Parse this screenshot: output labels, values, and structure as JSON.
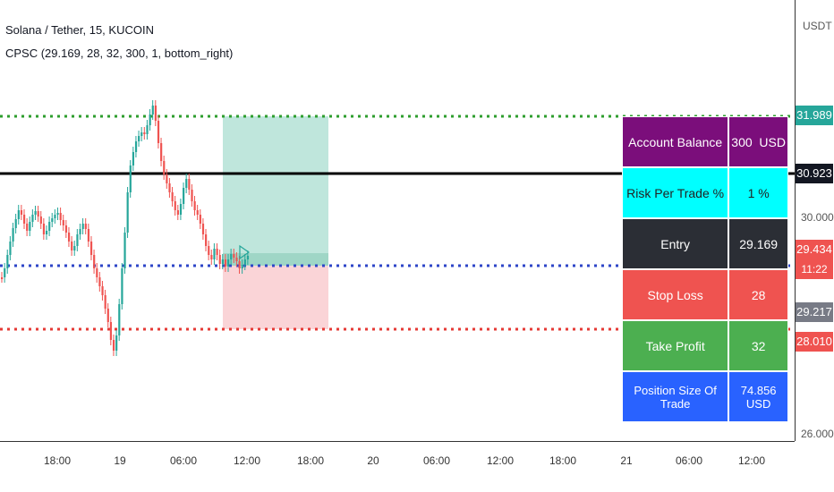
{
  "header": {
    "symbol_line": "Solana / Tether, 15, KUCOIN",
    "indicator_line": "CPSC (29.169, 28, 32, 300, 1, bottom_right)"
  },
  "price_axis": {
    "currency": "USDT",
    "ticks": [
      "30.000",
      "26.000"
    ],
    "tags": [
      {
        "text": "31.989",
        "color": "#26a69a"
      },
      {
        "text": "30.923",
        "color": "#131722"
      },
      {
        "text": "29.434",
        "color": "#ef5350"
      },
      {
        "text": "11:22",
        "color": "#ef5350"
      },
      {
        "text": "29.217",
        "color": "#787b86"
      },
      {
        "text": "28.010",
        "color": "#ef5350"
      }
    ]
  },
  "time_axis": {
    "labels": [
      "18:00",
      "19",
      "06:00",
      "12:00",
      "18:00",
      "20",
      "06:00",
      "12:00",
      "18:00",
      "21",
      "06:00",
      "12:00"
    ]
  },
  "table": {
    "account_balance_label": "Account Balance",
    "account_balance_value": "300  USD",
    "risk_label": "Risk Per Trade %",
    "risk_value": "1 %",
    "entry_label": "Entry",
    "entry_value": "29.169",
    "stop_loss_label": "Stop Loss",
    "stop_loss_value": "28",
    "take_profit_label": "Take Profit",
    "take_profit_value": "32",
    "position_label": "Position Size Of Trade",
    "position_value": "74.856 USD"
  },
  "colors": {
    "take_profit_line": "#2e9e2e",
    "entry_line": "#2e46c8",
    "stop_line": "#e53935",
    "black_line": "#000000",
    "profit_zone": "#bfe6dc",
    "loss_zone": "#fad4d7"
  }
}
